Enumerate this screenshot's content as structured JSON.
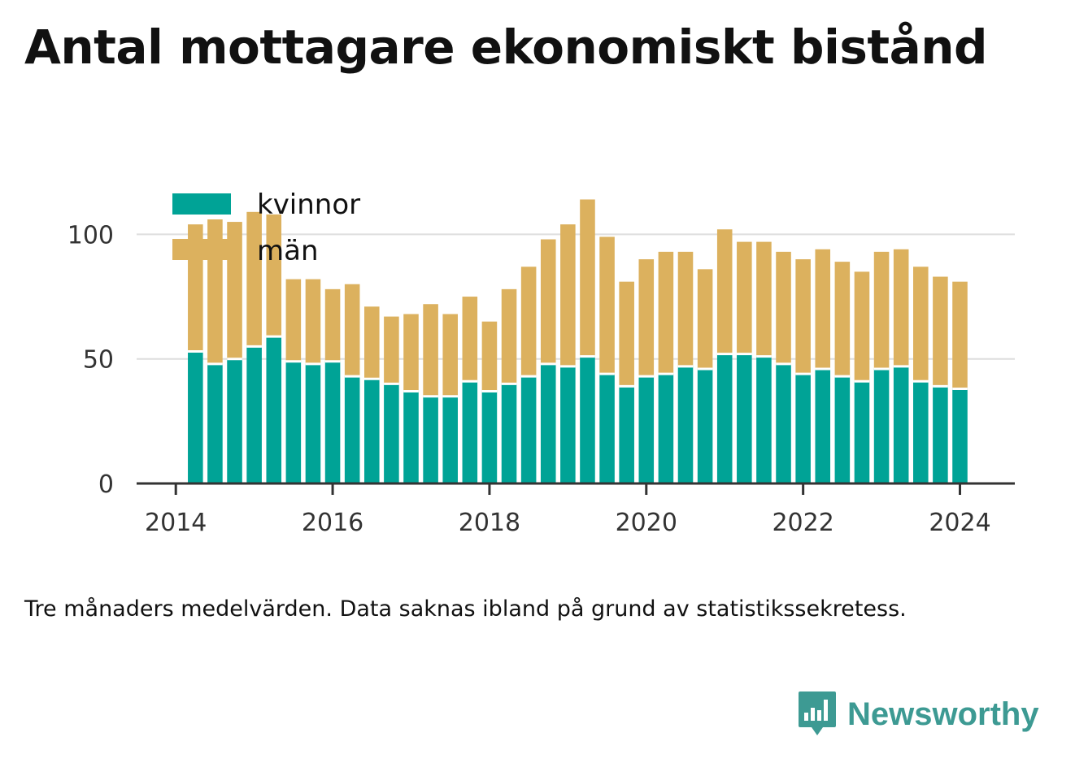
{
  "title": "Antal mottagare ekonomiskt bistånd",
  "note": "Tre månaders medelvärden. Data saknas ibland på grund av statistikssekretess.",
  "brand": {
    "name": "Newsworthy",
    "icon": "bar-chart-speech-bubble-icon"
  },
  "colors": {
    "kvinnor": "#00a396",
    "man": "#dcb15e",
    "grid": "#dedede",
    "axis": "#333333"
  },
  "chart_data": {
    "type": "bar",
    "stacked": true,
    "x_ticks": [
      "2014",
      "2016",
      "2018",
      "2020",
      "2022",
      "2024"
    ],
    "x_tick_values": [
      2014,
      2016,
      2018,
      2020,
      2022,
      2024
    ],
    "xlim": [
      2013.5,
      2024.7
    ],
    "y_ticks": [
      "0",
      "50",
      "100"
    ],
    "y_tick_values": [
      0,
      50,
      100
    ],
    "ylim": [
      0,
      115
    ],
    "grid": true,
    "legend_position": "top-left",
    "x": [
      2014.25,
      2014.5,
      2014.75,
      2015.0,
      2015.25,
      2015.5,
      2015.75,
      2016.0,
      2016.25,
      2016.5,
      2016.75,
      2017.0,
      2017.25,
      2017.5,
      2017.75,
      2018.0,
      2018.25,
      2018.5,
      2018.75,
      2019.0,
      2019.25,
      2019.5,
      2019.75,
      2020.0,
      2020.25,
      2020.5,
      2020.75,
      2021.0,
      2021.25,
      2021.5,
      2021.75,
      2022.0,
      2022.25,
      2022.5,
      2022.75,
      2023.0,
      2023.25,
      2023.5,
      2023.75,
      2024.0
    ],
    "series": [
      {
        "name": "kvinnor",
        "values": [
          53,
          48,
          50,
          55,
          59,
          49,
          48,
          49,
          43,
          42,
          40,
          37,
          35,
          35,
          41,
          37,
          40,
          43,
          48,
          47,
          51,
          44,
          39,
          43,
          44,
          47,
          46,
          52,
          52,
          51,
          48,
          44,
          46,
          43,
          41,
          46,
          47,
          41,
          39,
          38
        ]
      },
      {
        "name": "män",
        "values": [
          51,
          58,
          55,
          54,
          49,
          33,
          34,
          29,
          37,
          29,
          27,
          31,
          37,
          33,
          34,
          28,
          38,
          44,
          50,
          57,
          63,
          55,
          42,
          47,
          49,
          46,
          40,
          50,
          45,
          46,
          45,
          46,
          48,
          46,
          44,
          47,
          47,
          46,
          44,
          43
        ]
      }
    ]
  }
}
